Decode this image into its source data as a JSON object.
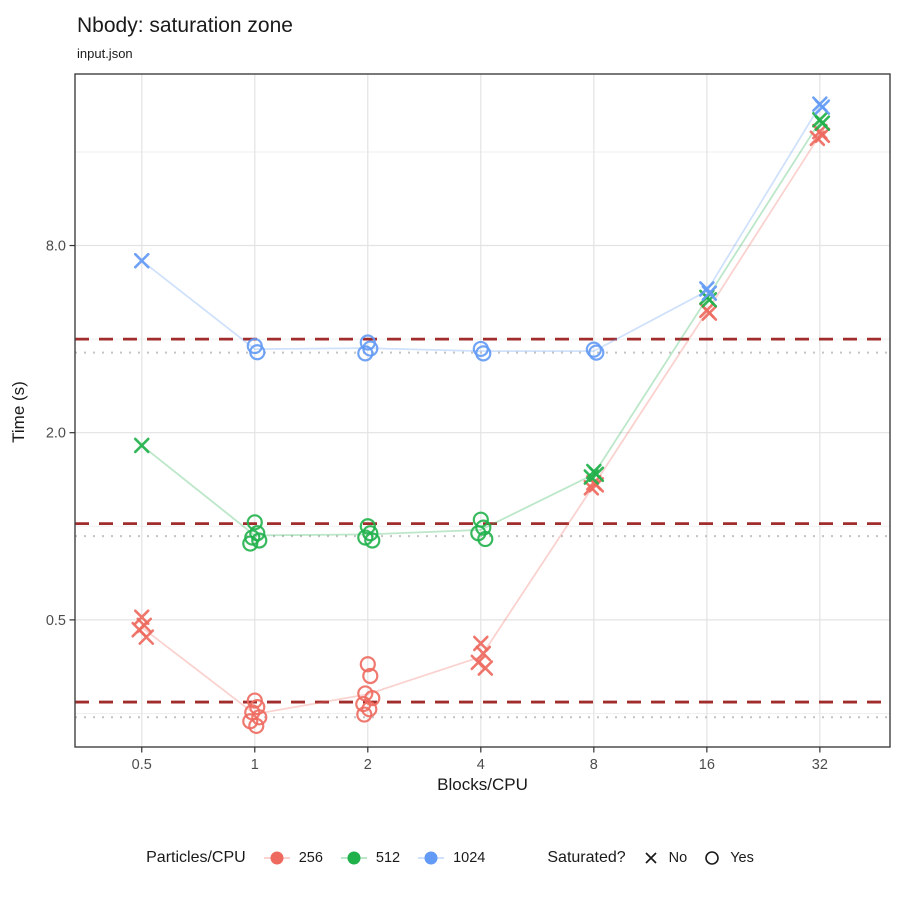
{
  "header": {
    "title": "Nbody: saturation zone",
    "subtitle": "input.json"
  },
  "chart_data": {
    "type": "scatter",
    "title": "Nbody: saturation zone",
    "subtitle": "input.json",
    "xlabel": "Blocks/CPU",
    "ylabel": "Time (s)",
    "x_scale": "log2",
    "y_scale": "log10",
    "grid": "on",
    "x_domain": [
      0.332,
      49.2
    ],
    "y_domain": [
      0.195,
      28.5
    ],
    "x_ticks": [
      {
        "v": 0.5,
        "label": "0.5"
      },
      {
        "v": 1,
        "label": "1"
      },
      {
        "v": 2,
        "label": "2"
      },
      {
        "v": 4,
        "label": "4"
      },
      {
        "v": 8,
        "label": "8"
      },
      {
        "v": 16,
        "label": "16"
      },
      {
        "v": 32,
        "label": "32"
      }
    ],
    "y_ticks": [
      {
        "v": 8.0,
        "label": "8.0"
      },
      {
        "v": 2.0,
        "label": "2.0"
      },
      {
        "v": 0.5,
        "label": "0.5"
      }
    ],
    "y_minor_gridlines": [
      0.25,
      1,
      4,
      16
    ],
    "colors": {
      "series_256": "#EE6A5F",
      "series_512": "#21B14B",
      "series_1024": "#639AF5",
      "dashed_threshold": "#A02C2C",
      "dotted_median": "#C4C4C4",
      "grid_major": "#E3E3E3",
      "grid_minor": "#EFEFEF",
      "panel_border": "#404040",
      "tick_label": "#4D4D4D"
    },
    "reference_lines": [
      {
        "group": "1024",
        "threshold_dashed": 4.0,
        "median_dotted": 3.62
      },
      {
        "group": "512",
        "threshold_dashed": 1.02,
        "median_dotted": 0.93
      },
      {
        "group": "256",
        "threshold_dashed": 0.272,
        "median_dotted": 0.243
      }
    ],
    "series": [
      {
        "name": "256",
        "color": "#EE6A5F",
        "points": [
          [
            0.5,
            0.51,
            "No"
          ],
          [
            0.5,
            0.48,
            "No"
          ],
          [
            0.5,
            0.465,
            "No"
          ],
          [
            0.5,
            0.44,
            "No"
          ],
          [
            1,
            0.275,
            "Yes"
          ],
          [
            1,
            0.262,
            "Yes"
          ],
          [
            1,
            0.252,
            "Yes"
          ],
          [
            1,
            0.243,
            "Yes"
          ],
          [
            1,
            0.236,
            "Yes"
          ],
          [
            1,
            0.228,
            "Yes"
          ],
          [
            2,
            0.36,
            "Yes"
          ],
          [
            2,
            0.33,
            "Yes"
          ],
          [
            2,
            0.29,
            "Yes"
          ],
          [
            2,
            0.28,
            "Yes"
          ],
          [
            2,
            0.268,
            "Yes"
          ],
          [
            2,
            0.258,
            "Yes"
          ],
          [
            2,
            0.248,
            "Yes"
          ],
          [
            4,
            0.42,
            "No"
          ],
          [
            4,
            0.39,
            "No"
          ],
          [
            4,
            0.365,
            "No"
          ],
          [
            4,
            0.35,
            "No"
          ],
          [
            8,
            1.38,
            "No"
          ],
          [
            8,
            1.36,
            "No"
          ],
          [
            8,
            1.33,
            "No"
          ],
          [
            16,
            4.95,
            "No"
          ],
          [
            16,
            4.85,
            "No"
          ],
          [
            32,
            18.6,
            "No"
          ],
          [
            32,
            18.1,
            "No"
          ],
          [
            32,
            17.7,
            "No"
          ]
        ]
      },
      {
        "name": "512",
        "color": "#21B14B",
        "points": [
          [
            0.5,
            1.82,
            "No"
          ],
          [
            1,
            1.03,
            "Yes"
          ],
          [
            1,
            0.95,
            "Yes"
          ],
          [
            1,
            0.92,
            "Yes"
          ],
          [
            1,
            0.9,
            "Yes"
          ],
          [
            1,
            0.88,
            "Yes"
          ],
          [
            2,
            1.0,
            "Yes"
          ],
          [
            2,
            0.95,
            "Yes"
          ],
          [
            2,
            0.92,
            "Yes"
          ],
          [
            2,
            0.9,
            "Yes"
          ],
          [
            4,
            1.05,
            "Yes"
          ],
          [
            4,
            0.99,
            "Yes"
          ],
          [
            4,
            0.95,
            "Yes"
          ],
          [
            4,
            0.91,
            "Yes"
          ],
          [
            8,
            1.5,
            "No"
          ],
          [
            8,
            1.47,
            "No"
          ],
          [
            8,
            1.44,
            "No"
          ],
          [
            16,
            5.45,
            "No"
          ],
          [
            16,
            5.35,
            "No"
          ],
          [
            32,
            20.3,
            "No"
          ],
          [
            32,
            19.8,
            "No"
          ]
        ]
      },
      {
        "name": "1024",
        "color": "#639AF5",
        "points": [
          [
            0.5,
            7.15,
            "No"
          ],
          [
            1,
            3.8,
            "Yes"
          ],
          [
            1,
            3.63,
            "Yes"
          ],
          [
            2,
            3.9,
            "Yes"
          ],
          [
            2,
            3.73,
            "Yes"
          ],
          [
            2,
            3.6,
            "Yes"
          ],
          [
            4,
            3.72,
            "Yes"
          ],
          [
            4,
            3.6,
            "Yes"
          ],
          [
            8,
            3.7,
            "Yes"
          ],
          [
            8,
            3.62,
            "Yes"
          ],
          [
            16,
            5.8,
            "No"
          ],
          [
            16,
            5.62,
            "No"
          ],
          [
            32,
            22.8,
            "No"
          ],
          [
            32,
            22.3,
            "No"
          ]
        ]
      }
    ],
    "legend": {
      "particles_label": "Particles/CPU",
      "items": [
        {
          "label": "256"
        },
        {
          "label": "512"
        },
        {
          "label": "1024"
        }
      ],
      "saturated_label": "Saturated?",
      "no_label": "No",
      "yes_label": "Yes"
    }
  }
}
